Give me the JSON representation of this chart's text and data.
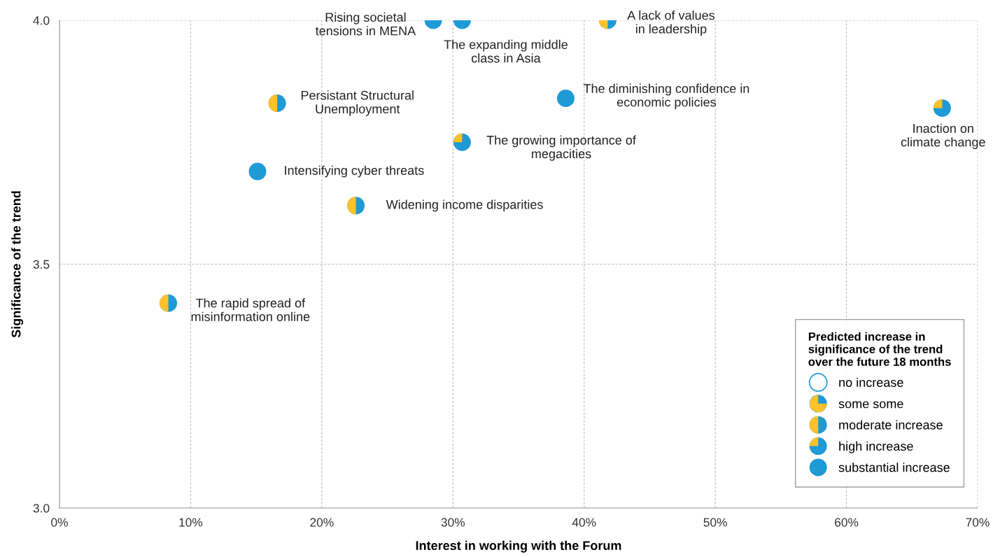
{
  "chart_data": {
    "type": "scatter",
    "xlabel": "Interest in working with the Forum",
    "ylabel": "Significance of the trend",
    "legend_title": "Predicted increase in\nsignificance of the trend\nover the future 18 months",
    "xlim": [
      0,
      70
    ],
    "ylim": [
      3.0,
      4.0
    ],
    "xticks": [
      {
        "value": 0,
        "label": "0%"
      },
      {
        "value": 10,
        "label": "10%"
      },
      {
        "value": 20,
        "label": "20%"
      },
      {
        "value": 30,
        "label": "30%"
      },
      {
        "value": 40,
        "label": "40%"
      },
      {
        "value": 50,
        "label": "50%"
      },
      {
        "value": 60,
        "label": "60%"
      },
      {
        "value": 70,
        "label": "70%"
      }
    ],
    "yticks": [
      {
        "value": 3,
        "label": "3.0"
      },
      {
        "value": 3.5,
        "label": "3.5"
      },
      {
        "value": 4,
        "label": "4.0"
      }
    ],
    "grid": true,
    "legend": "bottom right",
    "marker": "circle",
    "series": [
      {
        "name": "no increase",
        "color": "#1e9ad6"
      },
      {
        "name": "some some",
        "color": "#1e9ad6"
      },
      {
        "name": "moderate increase",
        "color": "#1e9ad6",
        "x": [
          41.8,
          16.6,
          22.6,
          8.3
        ],
        "values": [
          4.0,
          3.83,
          3.62,
          3.42
        ]
      },
      {
        "name": "high increase",
        "color": "#1e9ad6",
        "x": [
          30.7,
          67.3,
          30.7
        ],
        "values": [
          4.0,
          3.82,
          3.75
        ]
      },
      {
        "name": "substantial increase",
        "color": "#1e9ad6",
        "x": [
          28.5,
          38.6,
          15.1
        ],
        "values": [
          4.0,
          3.84,
          3.69
        ]
      }
    ],
    "annotations": [
      {
        "text": "Rising societal\ntensions in MENA",
        "x": 28.5,
        "y": 4.0
      },
      {
        "text": "The expanding middle\nclass in Asia",
        "x": 30.7,
        "y": 4.0
      },
      {
        "text": "A lack of values\nin leadership",
        "x": 41.8,
        "y": 4.0
      },
      {
        "text": "Persistant Structural\nUnemployment",
        "x": 16.6,
        "y": 3.83
      },
      {
        "text": "The diminishing confidence in\neconomic policies",
        "x": 38.6,
        "y": 3.84
      },
      {
        "text": "Inaction on\nclimate change",
        "x": 67.3,
        "y": 3.82
      },
      {
        "text": "The growing importance of\nmegacities",
        "x": 30.7,
        "y": 3.75
      },
      {
        "text": "Intensifying cyber threats",
        "x": 15.1,
        "y": 3.69
      },
      {
        "text": "Widening income disparities",
        "x": 22.6,
        "y": 3.62
      },
      {
        "text": "The rapid spread of\nmisinformation online",
        "x": 8.3,
        "y": 3.42
      }
    ]
  }
}
